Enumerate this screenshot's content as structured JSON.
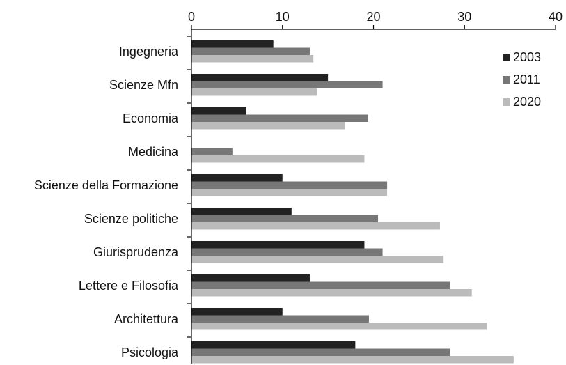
{
  "chart_data": {
    "type": "bar",
    "orientation": "horizontal",
    "title": "",
    "xlabel": "",
    "ylabel": "",
    "xlim": [
      0,
      40
    ],
    "x_ticks": [
      0,
      10,
      20,
      30,
      40
    ],
    "x_axis_position": "top",
    "grid": false,
    "legend_position": "top-right",
    "categories": [
      "Ingegneria",
      "Scienze Mfn",
      "Economia",
      "Medicina",
      "Scienze della Formazione",
      "Scienze politiche",
      "Giurisprudenza",
      "Lettere e Filosofia",
      "Architettura",
      "Psicologia"
    ],
    "series": [
      {
        "name": "2003",
        "color": "#222222",
        "values": [
          9,
          15,
          6,
          null,
          10,
          11,
          19,
          13,
          10,
          18
        ]
      },
      {
        "name": "2011",
        "color": "#777777",
        "values": [
          13,
          21,
          19.4,
          4.5,
          21.5,
          20.5,
          21,
          28.4,
          19.5,
          28.4
        ]
      },
      {
        "name": "2020",
        "color": "#bbbbbb",
        "values": [
          13.4,
          13.8,
          16.9,
          19,
          21.5,
          27.3,
          27.7,
          30.8,
          32.5,
          35.4
        ]
      }
    ]
  }
}
